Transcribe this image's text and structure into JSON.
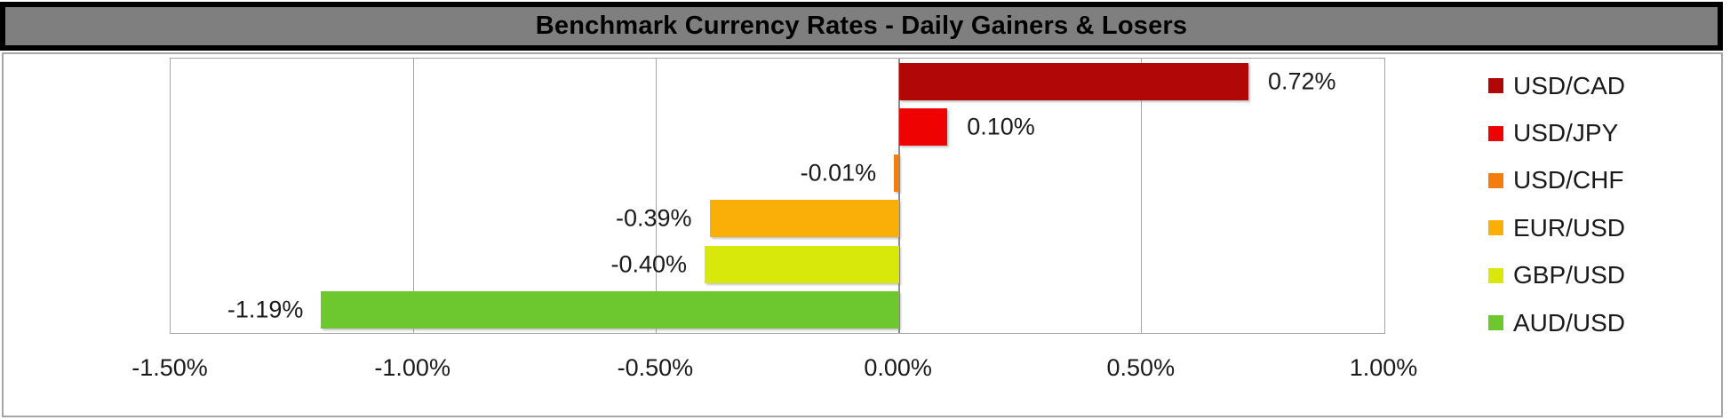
{
  "title_bar": {
    "title": "Benchmark Currency Rates - Daily Gainers & Losers",
    "bg_color": "#7F7F7F",
    "border_color": "#000000",
    "text_color": "#000000"
  },
  "chart_data": {
    "type": "bar",
    "orientation": "horizontal",
    "title": "Benchmark Currency Rates - Daily Gainers & Losers",
    "categories": [
      "USD/CAD",
      "USD/JPY",
      "USD/CHF",
      "EUR/USD",
      "GBP/USD",
      "AUD/USD"
    ],
    "values": [
      0.72,
      0.1,
      -0.01,
      -0.39,
      -0.4,
      -1.19
    ],
    "value_labels": [
      "0.72%",
      "0.10%",
      "-0.01%",
      "-0.39%",
      "-0.40%",
      "-1.19%"
    ],
    "bar_colors": [
      "#B20707",
      "#EE0202",
      "#F57D0D",
      "#F9AF08",
      "#D9E80B",
      "#6CC82E"
    ],
    "xlim": [
      -1.5,
      1.0
    ],
    "x_ticks": [
      -1.5,
      -1.0,
      -0.5,
      0.0,
      0.5,
      1.0
    ],
    "x_tick_labels": [
      "-1.50%",
      "-1.00%",
      "-0.50%",
      "0.00%",
      "0.50%",
      "1.00%"
    ],
    "grid": "vertical",
    "legend_position": "right",
    "legend": [
      {
        "label": "USD/CAD",
        "color": "#B20707"
      },
      {
        "label": "USD/JPY",
        "color": "#EE0202"
      },
      {
        "label": "USD/CHF",
        "color": "#F57D0D"
      },
      {
        "label": "EUR/USD",
        "color": "#F9AF08"
      },
      {
        "label": "GBP/USD",
        "color": "#D9E80B"
      },
      {
        "label": "AUD/USD",
        "color": "#6CC82E"
      }
    ]
  },
  "colors": {
    "gridline": "#A6A6A6",
    "zero_line": "#8C8C8C",
    "plot_border": "#A6A6A6",
    "frame_border": "#A6A6A6",
    "label_text": "#1A1A1A"
  }
}
